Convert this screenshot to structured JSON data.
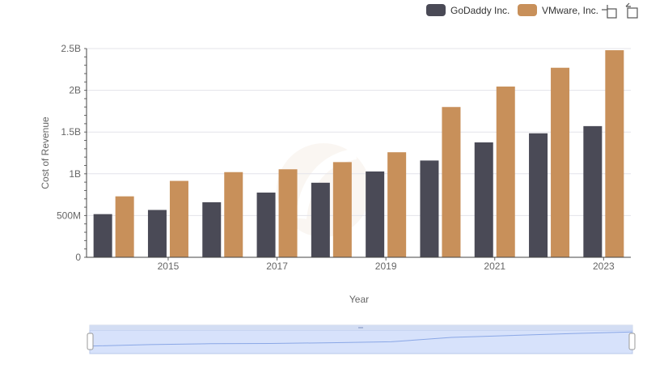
{
  "legend": {
    "items": [
      {
        "label": "GoDaddy Inc.",
        "color": "#4a4a56"
      },
      {
        "label": "VMware, Inc.",
        "color": "#c8905a"
      }
    ]
  },
  "toolbar": {
    "icons": [
      "zoom-icon",
      "reset-icon"
    ]
  },
  "chart_data": {
    "type": "bar",
    "xlabel": "Year",
    "ylabel": "Cost of Revenue",
    "ylim": [
      0,
      2500000000
    ],
    "y_ticks": [
      {
        "value": 0,
        "label": "0"
      },
      {
        "value": 500000000,
        "label": "500M"
      },
      {
        "value": 1000000000,
        "label": "1B"
      },
      {
        "value": 1500000000,
        "label": "1.5B"
      },
      {
        "value": 2000000000,
        "label": "2B"
      },
      {
        "value": 2500000000,
        "label": "2.5B"
      }
    ],
    "x_tick_labels": [
      "2015",
      "2017",
      "2019",
      "2021",
      "2023"
    ],
    "categories": [
      2014,
      2015,
      2016,
      2017,
      2018,
      2019,
      2020,
      2021,
      2022,
      2023
    ],
    "series": [
      {
        "name": "GoDaddy Inc.",
        "color": "#4a4a56",
        "values": [
          517000000,
          567000000,
          659000000,
          775000000,
          893000000,
          1028000000,
          1159000000,
          1376000000,
          1485000000,
          1571000000
        ]
      },
      {
        "name": "VMware, Inc.",
        "color": "#c8905a",
        "values": [
          730000000,
          915000000,
          1020000000,
          1054000000,
          1140000000,
          1258000000,
          1800000000,
          2045000000,
          2270000000,
          2480000000
        ]
      }
    ],
    "grid": true,
    "legend_position": "top-right",
    "range_slider": {
      "visible": true
    }
  }
}
